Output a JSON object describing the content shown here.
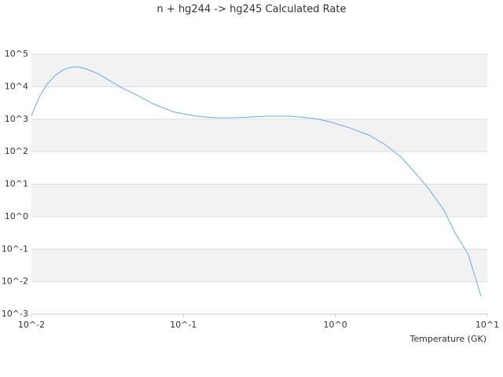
{
  "chart_data": {
    "type": "line",
    "title": "n + hg244 -> hg245 Calculated Rate",
    "x_label": "Temperature (GK)",
    "xscale": "log",
    "yscale": "log",
    "grid": true,
    "band_color": "#f2f2f2",
    "xlim": [
      0.01,
      10
    ],
    "ylim": [
      0.001,
      100000
    ],
    "xticks": [
      {
        "value": 0.01,
        "label": "10^-2"
      },
      {
        "value": 0.1,
        "label": "10^-1"
      },
      {
        "value": 1,
        "label": "10^0"
      },
      {
        "value": 10,
        "label": "10^1"
      }
    ],
    "yticks": [
      {
        "value": 0.001,
        "label": "10^-3"
      },
      {
        "value": 0.01,
        "label": "10^-2"
      },
      {
        "value": 0.1,
        "label": "10^-1"
      },
      {
        "value": 1,
        "label": "10^0"
      },
      {
        "value": 10,
        "label": "10^1"
      },
      {
        "value": 100,
        "label": "10^2"
      },
      {
        "value": 1000,
        "label": "10^3"
      },
      {
        "value": 10000,
        "label": "10^4"
      },
      {
        "value": 100000,
        "label": "10^5"
      }
    ],
    "x": [
      0.01,
      0.0113,
      0.0127,
      0.0143,
      0.0161,
      0.0181,
      0.02,
      0.023,
      0.0275,
      0.033,
      0.0393,
      0.047,
      0.063,
      0.085,
      0.122,
      0.164,
      0.22,
      0.28,
      0.36,
      0.51,
      0.73,
      0.92,
      1.24,
      1.67,
      2.12,
      2.7,
      3.43,
      4.1,
      5.2,
      6.2,
      7.5,
      8.4,
      9.1
    ],
    "series": [
      {
        "color": "#6aa9e8",
        "values": [
          1300,
          5000,
          12000,
          22000,
          33000,
          39000,
          41000,
          35000,
          25000,
          15000,
          9200,
          6200,
          3000,
          1700,
          1230,
          1100,
          1100,
          1170,
          1230,
          1230,
          1050,
          830,
          540,
          320,
          167,
          69,
          20,
          7.4,
          1.55,
          0.29,
          0.069,
          0.012,
          0.0035
        ]
      }
    ]
  }
}
